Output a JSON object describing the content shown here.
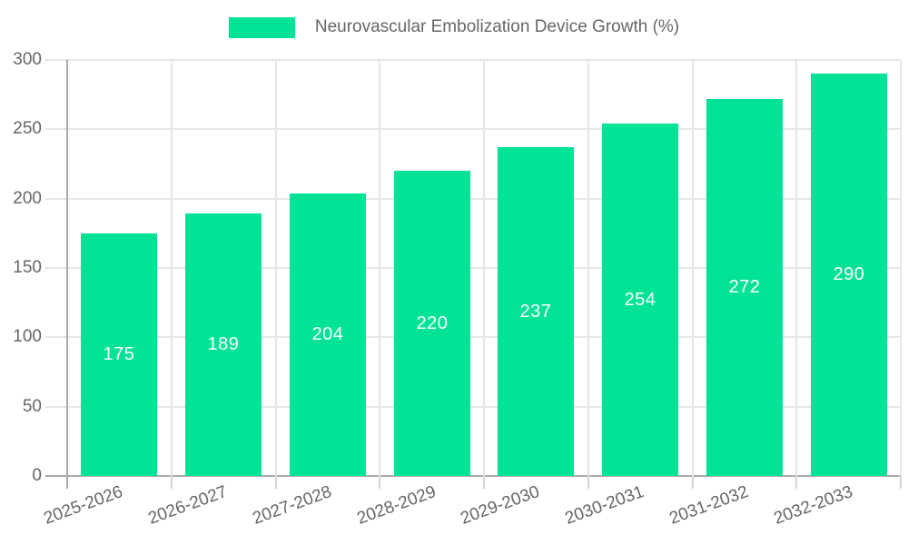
{
  "legend": {
    "label": "Neurovascular Embolization Device Growth (%)",
    "swatch_color": "#00E396"
  },
  "colors": {
    "bar": "#00E396",
    "bar_label": "#FFFFFF",
    "axis_line": "#A9A9A9",
    "grid_line": "#E5E5E5",
    "tick_mark": "#D6D6D6",
    "tick_label": "#666666",
    "background": "#FFFFFF"
  },
  "chart_data": {
    "type": "bar",
    "title": "Neurovascular Embolization Device Growth (%)",
    "categories": [
      "2025-2026",
      "2026-2027",
      "2027-2028",
      "2028-2029",
      "2029-2030",
      "2030-2031",
      "2031-2032",
      "2032-2033"
    ],
    "values": [
      175,
      189,
      204,
      220,
      237,
      254,
      272,
      290
    ],
    "xlabel": "",
    "ylabel": "",
    "ylim": [
      0,
      300
    ],
    "yticks": [
      0,
      50,
      100,
      150,
      200,
      250,
      300
    ],
    "grid": true,
    "legend_position": "top",
    "value_label_position": "inside-center",
    "x_tick_rotation_deg": -20
  }
}
